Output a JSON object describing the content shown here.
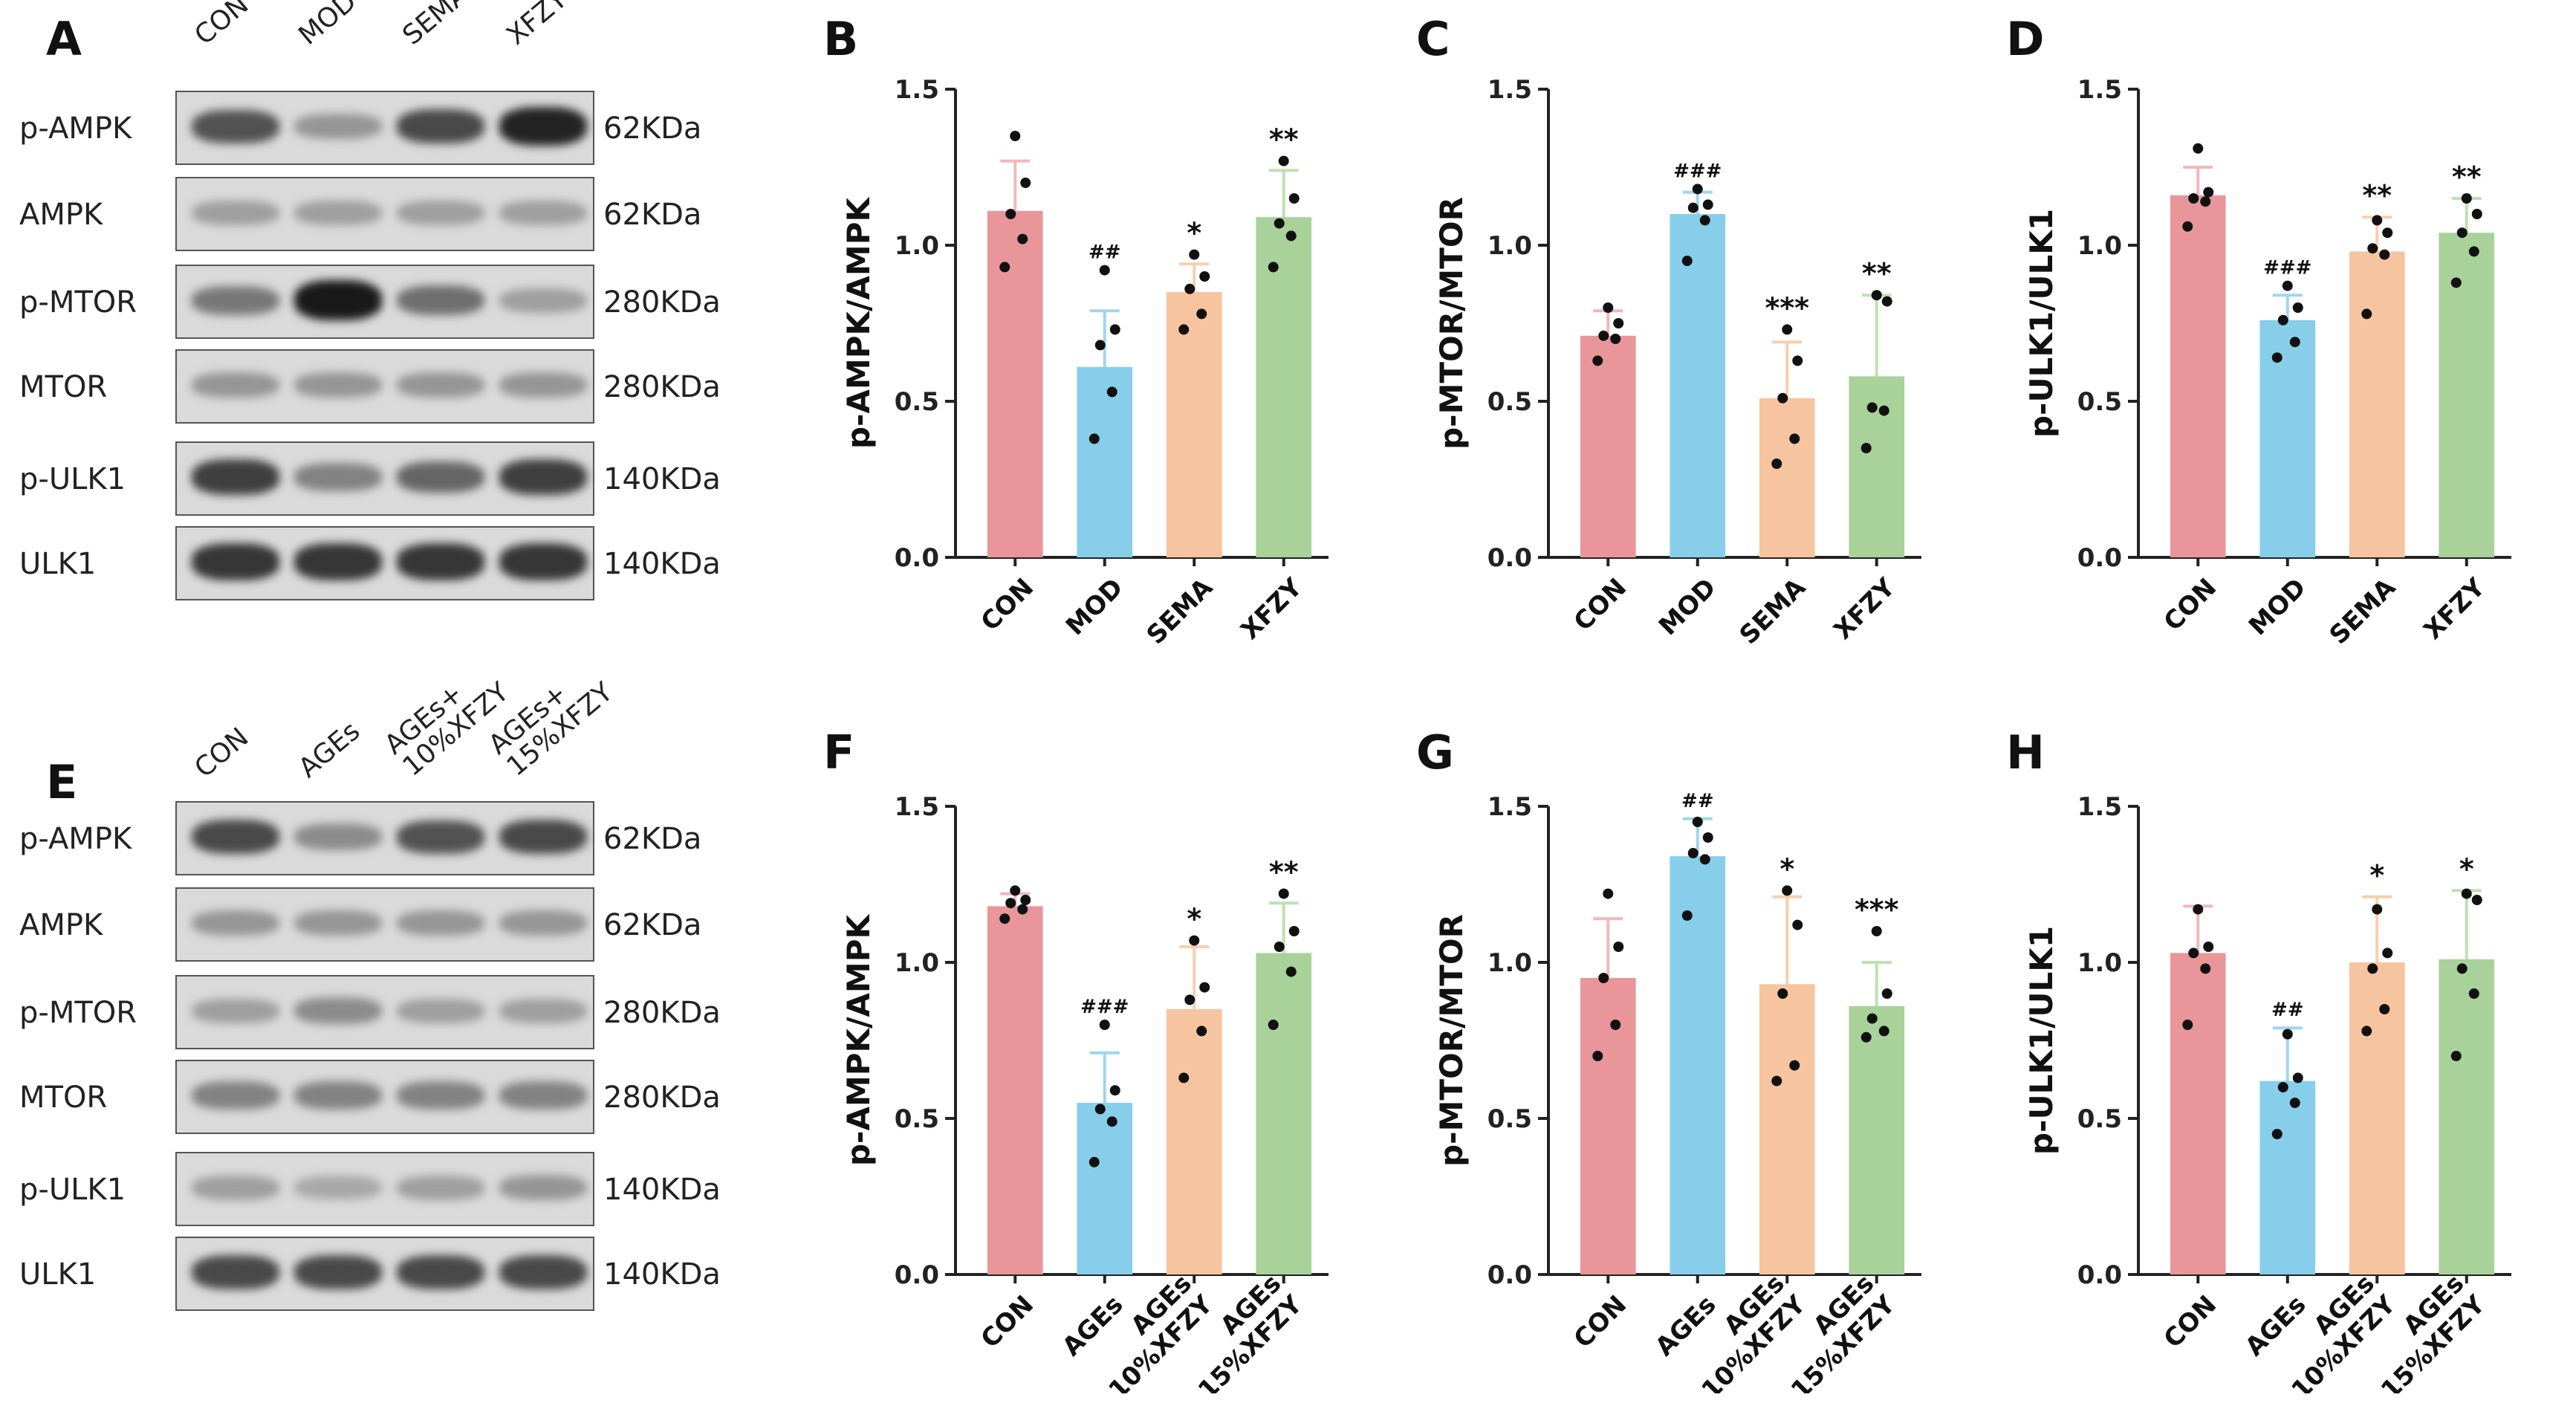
{
  "panels": {
    "A": "A",
    "B": "B",
    "C": "C",
    "D": "D",
    "E": "E",
    "F": "F",
    "G": "G",
    "H": "H"
  },
  "blots": [
    {
      "columns": [
        "CON",
        "MOD",
        "SEMA",
        "XFZY"
      ],
      "rows": [
        {
          "label": "p-AMPK",
          "size": "62KDa",
          "intensity": [
            0.7,
            0.35,
            0.75,
            0.95
          ]
        },
        {
          "label": "AMPK",
          "size": "62KDa",
          "intensity": [
            0.3,
            0.3,
            0.3,
            0.3
          ]
        },
        {
          "label": "p-MTOR",
          "size": "280KDa",
          "intensity": [
            0.5,
            1.0,
            0.55,
            0.3
          ]
        },
        {
          "label": "MTOR",
          "size": "280KDa",
          "intensity": [
            0.35,
            0.35,
            0.35,
            0.35
          ]
        },
        {
          "label": "p-ULK1",
          "size": "140KDa",
          "intensity": [
            0.8,
            0.45,
            0.6,
            0.8
          ]
        },
        {
          "label": "ULK1",
          "size": "140KDa",
          "intensity": [
            0.85,
            0.85,
            0.85,
            0.85
          ]
        }
      ]
    },
    {
      "columns": [
        "CON",
        "AGEs",
        "AGEs+\n10%XFZY",
        "AGEs+\n15%XFZY"
      ],
      "rows": [
        {
          "label": "p-AMPK",
          "size": "62KDa",
          "intensity": [
            0.75,
            0.4,
            0.7,
            0.75
          ]
        },
        {
          "label": "AMPK",
          "size": "62KDa",
          "intensity": [
            0.35,
            0.35,
            0.35,
            0.35
          ]
        },
        {
          "label": "p-MTOR",
          "size": "280KDa",
          "intensity": [
            0.3,
            0.4,
            0.3,
            0.3
          ]
        },
        {
          "label": "MTOR",
          "size": "280KDa",
          "intensity": [
            0.45,
            0.45,
            0.45,
            0.45
          ]
        },
        {
          "label": "p-ULK1",
          "size": "140KDa",
          "intensity": [
            0.3,
            0.25,
            0.3,
            0.35
          ]
        },
        {
          "label": "ULK1",
          "size": "140KDa",
          "intensity": [
            0.75,
            0.75,
            0.75,
            0.75
          ]
        }
      ]
    }
  ],
  "colors": {
    "CON": "#e8969a",
    "MOD": "#87ceea",
    "SEMA": "#f7c4a0",
    "XFZY": "#a8d29a",
    "CON_err": "#f0b8bb",
    "MOD_err": "#9fd6ee",
    "SEMA_err": "#f7cfae",
    "XFZY_err": "#bfe0b2"
  },
  "chart_data": [
    {
      "type": "bar",
      "panel": "B",
      "categories": [
        "CON",
        "MOD",
        "SEMA",
        "XFZY"
      ],
      "values": [
        1.11,
        0.61,
        0.85,
        1.09
      ],
      "errors": [
        0.16,
        0.18,
        0.09,
        0.15
      ],
      "points": [
        [
          0.93,
          1.02,
          1.1,
          1.2,
          1.35
        ],
        [
          0.38,
          0.53,
          0.68,
          0.73,
          0.92
        ],
        [
          0.73,
          0.78,
          0.86,
          0.9,
          0.97
        ],
        [
          0.93,
          1.03,
          1.07,
          1.15,
          1.27
        ]
      ],
      "annotations": [
        "",
        "##",
        "*",
        "**"
      ],
      "ylabel": "p-AMPK/AMPK",
      "ylim": [
        0,
        1.5
      ],
      "yticks": [
        "0.0",
        "0.5",
        "1.0",
        "1.5"
      ]
    },
    {
      "type": "bar",
      "panel": "C",
      "categories": [
        "CON",
        "MOD",
        "SEMA",
        "XFZY"
      ],
      "values": [
        0.71,
        1.1,
        0.51,
        0.58
      ],
      "errors": [
        0.08,
        0.07,
        0.18,
        0.26
      ],
      "points": [
        [
          0.63,
          0.7,
          0.71,
          0.75,
          0.8
        ],
        [
          0.95,
          1.08,
          1.12,
          1.13,
          1.18
        ],
        [
          0.3,
          0.38,
          0.51,
          0.63,
          0.73
        ],
        [
          0.35,
          0.47,
          0.48,
          0.82,
          0.84
        ]
      ],
      "annotations": [
        "",
        "###",
        "***",
        "**"
      ],
      "ylabel": "p-MTOR/MTOR",
      "ylim": [
        0,
        1.5
      ],
      "yticks": [
        "0.0",
        "0.5",
        "1.0",
        "1.5"
      ]
    },
    {
      "type": "bar",
      "panel": "D",
      "categories": [
        "CON",
        "MOD",
        "SEMA",
        "XFZY"
      ],
      "values": [
        1.16,
        0.76,
        0.98,
        1.04
      ],
      "errors": [
        0.09,
        0.08,
        0.11,
        0.11
      ],
      "points": [
        [
          1.06,
          1.14,
          1.15,
          1.17,
          1.31
        ],
        [
          0.64,
          0.69,
          0.76,
          0.8,
          0.87
        ],
        [
          0.78,
          0.97,
          0.99,
          1.04,
          1.08
        ],
        [
          0.88,
          0.98,
          1.04,
          1.1,
          1.15
        ]
      ],
      "annotations": [
        "",
        "###",
        "**",
        "**"
      ],
      "ylabel": "p-ULK1/ULK1",
      "ylim": [
        0,
        1.5
      ],
      "yticks": [
        "0.0",
        "0.5",
        "1.0",
        "1.5"
      ]
    },
    {
      "type": "bar",
      "panel": "F",
      "categories": [
        "CON",
        "AGEs",
        "AGEs\n+10%XFZY",
        "AGEs\n+15%XFZY"
      ],
      "values": [
        1.18,
        0.55,
        0.85,
        1.03
      ],
      "errors": [
        0.04,
        0.16,
        0.2,
        0.16
      ],
      "points": [
        [
          1.14,
          1.17,
          1.19,
          1.2,
          1.23
        ],
        [
          0.36,
          0.49,
          0.53,
          0.59,
          0.8
        ],
        [
          0.63,
          0.78,
          0.88,
          0.92,
          1.07
        ],
        [
          0.8,
          0.97,
          1.05,
          1.1,
          1.22
        ]
      ],
      "annotations": [
        "",
        "###",
        "*",
        "**"
      ],
      "ylabel": "p-AMPK/AMPK",
      "ylim": [
        0,
        1.5
      ],
      "yticks": [
        "0.0",
        "0.5",
        "1.0",
        "1.5"
      ]
    },
    {
      "type": "bar",
      "panel": "G",
      "categories": [
        "CON",
        "AGEs",
        "AGEs\n+10%XFZY",
        "AGEs\n+15%XFZY"
      ],
      "values": [
        0.95,
        1.34,
        0.93,
        0.86
      ],
      "errors": [
        0.19,
        0.12,
        0.28,
        0.14
      ],
      "points": [
        [
          0.7,
          0.8,
          0.95,
          1.05,
          1.22
        ],
        [
          1.15,
          1.33,
          1.35,
          1.4,
          1.45
        ],
        [
          0.62,
          0.67,
          0.9,
          1.12,
          1.23
        ],
        [
          0.76,
          0.78,
          0.82,
          0.9,
          1.1
        ]
      ],
      "annotations": [
        "",
        "##",
        "*",
        "***"
      ],
      "ylabel": "p-MTOR/MTOR",
      "ylim": [
        0,
        1.5
      ],
      "yticks": [
        "0.0",
        "0.5",
        "1.0",
        "1.5"
      ]
    },
    {
      "type": "bar",
      "panel": "H",
      "categories": [
        "CON",
        "AGEs",
        "AGEs\n+10%XFZY",
        "AGEs\n+15%XFZY"
      ],
      "values": [
        1.03,
        0.62,
        1.0,
        1.01
      ],
      "errors": [
        0.15,
        0.17,
        0.21,
        0.22
      ],
      "points": [
        [
          0.8,
          0.98,
          1.03,
          1.05,
          1.17
        ],
        [
          0.45,
          0.55,
          0.6,
          0.63,
          0.77
        ],
        [
          0.78,
          0.85,
          0.98,
          1.03,
          1.17
        ],
        [
          0.7,
          0.9,
          0.98,
          1.2,
          1.22
        ]
      ],
      "annotations": [
        "",
        "##",
        "*",
        "*"
      ],
      "ylabel": "p-ULK1/ULK1",
      "ylim": [
        0,
        1.5
      ],
      "yticks": [
        "0.0",
        "0.5",
        "1.0",
        "1.5"
      ]
    }
  ]
}
